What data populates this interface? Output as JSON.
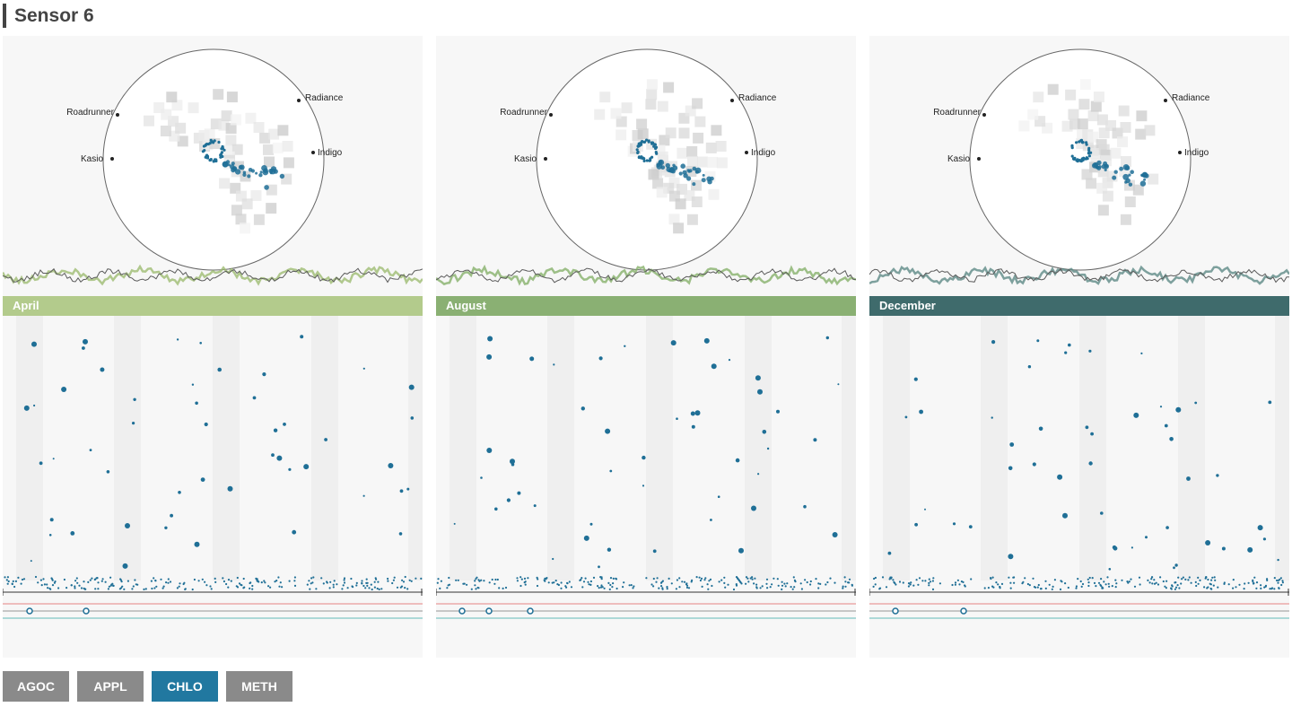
{
  "page": {
    "title": "Sensor 6"
  },
  "panels": [
    {
      "month": "April",
      "color": "#b3cb8c",
      "line_color": "#9dbb72",
      "seed": 11,
      "polar_labels": [
        "Roadrunner",
        "Radiance",
        "Kasio",
        "Indigo"
      ]
    },
    {
      "month": "August",
      "color": "#8ab073",
      "line_color": "#86b06a",
      "seed": 23,
      "polar_labels": [
        "Roadrunner",
        "Radiance",
        "Kasio",
        "Indigo"
      ]
    },
    {
      "month": "December",
      "color": "#3f6b6c",
      "line_color": "#5e8a86",
      "seed": 37,
      "polar_labels": [
        "Roadrunner",
        "Radiance",
        "Kasio",
        "Indigo"
      ]
    }
  ],
  "buttons": [
    {
      "label": "AGOC",
      "active": false
    },
    {
      "label": "APPL",
      "active": false
    },
    {
      "label": "CHLO",
      "active": true
    },
    {
      "label": "METH",
      "active": false
    }
  ],
  "colors": {
    "dot": "#1f6f96",
    "button": "#8a8a8a",
    "button_active": "#2178a0",
    "band": "#efefef",
    "ring": "#666666"
  }
}
